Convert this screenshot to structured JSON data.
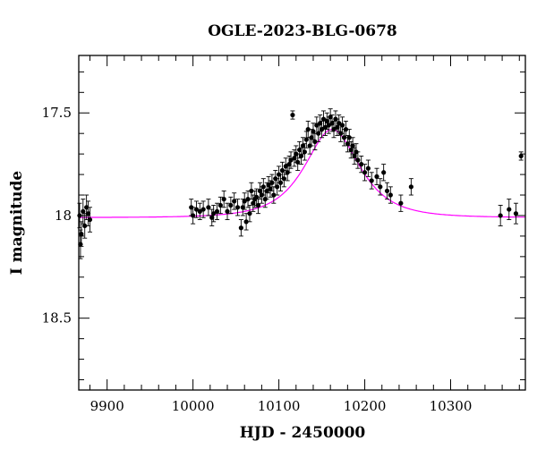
{
  "chart_data": {
    "type": "scatter",
    "title": "OGLE-2023-BLG-0678",
    "xlabel": "HJD - 2450000",
    "ylabel": "I magnitude",
    "xlim": [
      9867,
      10387
    ],
    "ylim": [
      18.85,
      17.22
    ],
    "y_inverted": true,
    "grid": false,
    "x_ticks": [
      9900,
      10000,
      10100,
      10200,
      10300
    ],
    "x_tick_labels": [
      "9900",
      "10000",
      "10100",
      "10200",
      "10300"
    ],
    "y_ticks": [
      17.5,
      18,
      18.5
    ],
    "y_tick_labels": [
      "17.5",
      "18",
      "18.5"
    ],
    "x_minor_step": 20,
    "y_minor_step": 0.1,
    "colors": {
      "model": "#ff00ff",
      "points": "#000000",
      "frame": "#000000"
    },
    "model": {
      "name": "",
      "type": "point-lens fit",
      "t0": 10162,
      "tE": 42,
      "baseline_mag": 18.01,
      "peak_mag": 17.58,
      "x_range": [
        9867,
        10387
      ]
    },
    "series": [
      {
        "name": "",
        "marker": "filled-circle with error bars",
        "points": [
          [
            9868,
            18.0,
            0.06
          ],
          [
            9869,
            18.14,
            0.07
          ],
          [
            9870,
            18.09,
            0.06
          ],
          [
            9872,
            17.98,
            0.06
          ],
          [
            9874,
            18.05,
            0.06
          ],
          [
            9876,
            17.96,
            0.06
          ],
          [
            9878,
            17.99,
            0.06
          ],
          [
            9880,
            18.02,
            0.06
          ],
          [
            9998,
            17.96,
            0.04
          ],
          [
            10000,
            18.0,
            0.04
          ],
          [
            10004,
            17.97,
            0.04
          ],
          [
            10008,
            17.98,
            0.04
          ],
          [
            10012,
            17.97,
            0.04
          ],
          [
            10018,
            17.96,
            0.04
          ],
          [
            10022,
            18.01,
            0.04
          ],
          [
            10024,
            17.99,
            0.04
          ],
          [
            10028,
            17.98,
            0.04
          ],
          [
            10032,
            17.95,
            0.04
          ],
          [
            10036,
            17.92,
            0.04
          ],
          [
            10040,
            17.98,
            0.04
          ],
          [
            10044,
            17.95,
            0.04
          ],
          [
            10048,
            17.93,
            0.04
          ],
          [
            10052,
            17.96,
            0.04
          ],
          [
            10056,
            18.06,
            0.04
          ],
          [
            10058,
            17.96,
            0.04
          ],
          [
            10060,
            17.93,
            0.04
          ],
          [
            10062,
            18.03,
            0.04
          ],
          [
            10064,
            17.92,
            0.04
          ],
          [
            10066,
            17.99,
            0.04
          ],
          [
            10068,
            17.88,
            0.04
          ],
          [
            10070,
            17.94,
            0.04
          ],
          [
            10072,
            17.92,
            0.04
          ],
          [
            10074,
            17.91,
            0.04
          ],
          [
            10076,
            17.95,
            0.04
          ],
          [
            10078,
            17.88,
            0.04
          ],
          [
            10080,
            17.9,
            0.04
          ],
          [
            10082,
            17.86,
            0.04
          ],
          [
            10084,
            17.92,
            0.04
          ],
          [
            10086,
            17.88,
            0.04
          ],
          [
            10088,
            17.85,
            0.04
          ],
          [
            10090,
            17.87,
            0.04
          ],
          [
            10092,
            17.84,
            0.04
          ],
          [
            10094,
            17.9,
            0.04
          ],
          [
            10096,
            17.82,
            0.04
          ],
          [
            10098,
            17.86,
            0.04
          ],
          [
            10100,
            17.8,
            0.04
          ],
          [
            10102,
            17.84,
            0.04
          ],
          [
            10104,
            17.78,
            0.04
          ],
          [
            10106,
            17.82,
            0.04
          ],
          [
            10108,
            17.76,
            0.04
          ],
          [
            10110,
            17.79,
            0.04
          ],
          [
            10112,
            17.75,
            0.04
          ],
          [
            10114,
            17.73,
            0.04
          ],
          [
            10116,
            17.51,
            0.02
          ],
          [
            10118,
            17.72,
            0.04
          ],
          [
            10120,
            17.7,
            0.04
          ],
          [
            10122,
            17.74,
            0.04
          ],
          [
            10124,
            17.68,
            0.04
          ],
          [
            10126,
            17.71,
            0.04
          ],
          [
            10128,
            17.66,
            0.04
          ],
          [
            10130,
            17.69,
            0.04
          ],
          [
            10132,
            17.63,
            0.04
          ],
          [
            10134,
            17.58,
            0.04
          ],
          [
            10136,
            17.66,
            0.04
          ],
          [
            10138,
            17.62,
            0.04
          ],
          [
            10140,
            17.59,
            0.04
          ],
          [
            10142,
            17.64,
            0.04
          ],
          [
            10144,
            17.56,
            0.04
          ],
          [
            10146,
            17.6,
            0.04
          ],
          [
            10148,
            17.55,
            0.04
          ],
          [
            10150,
            17.58,
            0.04
          ],
          [
            10152,
            17.53,
            0.04
          ],
          [
            10154,
            17.57,
            0.04
          ],
          [
            10156,
            17.54,
            0.04
          ],
          [
            10158,
            17.56,
            0.04
          ],
          [
            10160,
            17.52,
            0.04
          ],
          [
            10162,
            17.55,
            0.04
          ],
          [
            10164,
            17.58,
            0.04
          ],
          [
            10166,
            17.53,
            0.04
          ],
          [
            10168,
            17.57,
            0.04
          ],
          [
            10170,
            17.55,
            0.04
          ],
          [
            10172,
            17.6,
            0.04
          ],
          [
            10174,
            17.56,
            0.04
          ],
          [
            10176,
            17.62,
            0.04
          ],
          [
            10178,
            17.58,
            0.04
          ],
          [
            10180,
            17.65,
            0.04
          ],
          [
            10182,
            17.62,
            0.04
          ],
          [
            10184,
            17.68,
            0.04
          ],
          [
            10186,
            17.66,
            0.04
          ],
          [
            10188,
            17.71,
            0.04
          ],
          [
            10190,
            17.69,
            0.04
          ],
          [
            10192,
            17.73,
            0.04
          ],
          [
            10196,
            17.75,
            0.04
          ],
          [
            10200,
            17.79,
            0.04
          ],
          [
            10204,
            17.77,
            0.04
          ],
          [
            10208,
            17.83,
            0.04
          ],
          [
            10214,
            17.81,
            0.04
          ],
          [
            10218,
            17.86,
            0.04
          ],
          [
            10222,
            17.79,
            0.04
          ],
          [
            10226,
            17.88,
            0.04
          ],
          [
            10230,
            17.9,
            0.04
          ],
          [
            10242,
            17.94,
            0.04
          ],
          [
            10254,
            17.86,
            0.04
          ],
          [
            10358,
            18.0,
            0.05
          ],
          [
            10368,
            17.97,
            0.05
          ],
          [
            10376,
            17.99,
            0.05
          ],
          [
            10382,
            17.71,
            0.02
          ]
        ]
      }
    ]
  }
}
